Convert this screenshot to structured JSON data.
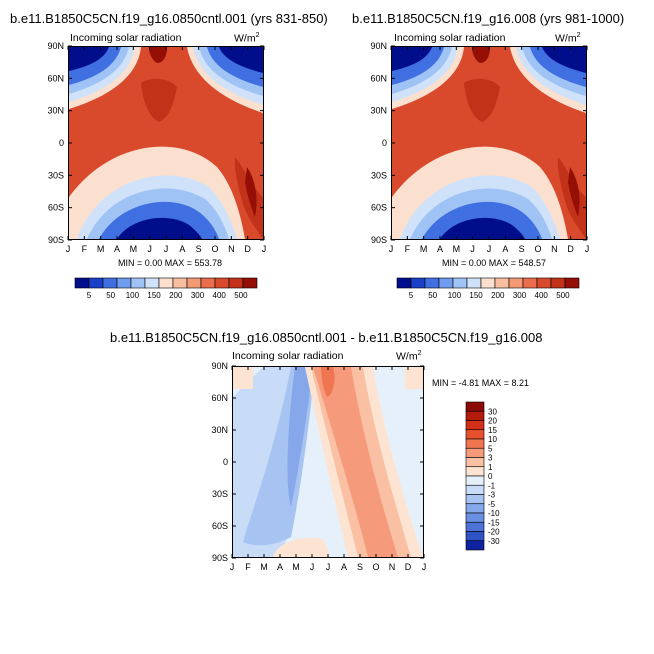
{
  "chart_data": [
    {
      "type": "contour",
      "title": "b.e11.B1850C5CN.f19_g16.0850cntl.001 (yrs 831-850)",
      "subtitle": "Incoming solar radiation",
      "units": "W/m",
      "units_sup": "2",
      "stats": "MIN =   0.00 MAX = 553.78",
      "x_ticks": [
        "J",
        "F",
        "M",
        "A",
        "M",
        "J",
        "J",
        "A",
        "S",
        "O",
        "N",
        "D",
        "J"
      ],
      "y_ticks": [
        "90N",
        "60N",
        "30N",
        "0",
        "30S",
        "60S",
        "90S"
      ],
      "colorbar_levels": [
        "5",
        "50",
        "100",
        "150",
        "200",
        "300",
        "400",
        "500"
      ],
      "colorbar_colors": [
        "#000e8c",
        "#1a3fc8",
        "#3f6fe0",
        "#6f9cee",
        "#9fc3f4",
        "#cfe2fa",
        "#fbe0cf",
        "#f7bf9f",
        "#f39a74",
        "#ea6d4c",
        "#d94a2c",
        "#c13219",
        "#950f06"
      ],
      "min": 0.0,
      "max": 553.78
    },
    {
      "type": "contour",
      "title": "b.e11.B1850C5CN.f19_g16.008 (yrs 981-1000)",
      "subtitle": "Incoming solar radiation",
      "units": "W/m",
      "units_sup": "2",
      "stats": "MIN =   0.00 MAX = 548.57",
      "x_ticks": [
        "J",
        "F",
        "M",
        "A",
        "M",
        "J",
        "J",
        "A",
        "S",
        "O",
        "N",
        "D",
        "J"
      ],
      "y_ticks": [
        "90N",
        "60N",
        "30N",
        "0",
        "30S",
        "60S",
        "90S"
      ],
      "colorbar_levels": [
        "5",
        "50",
        "100",
        "150",
        "200",
        "300",
        "400",
        "500"
      ],
      "colorbar_colors": [
        "#000e8c",
        "#1a3fc8",
        "#3f6fe0",
        "#6f9cee",
        "#9fc3f4",
        "#cfe2fa",
        "#fbe0cf",
        "#f7bf9f",
        "#f39a74",
        "#ea6d4c",
        "#d94a2c",
        "#c13219",
        "#950f06"
      ],
      "min": 0.0,
      "max": 548.57
    },
    {
      "type": "contour",
      "title": "b.e11.B1850C5CN.f19_g16.0850cntl.001 - b.e11.B1850C5CN.f19_g16.008",
      "subtitle": "Incoming solar radiation",
      "units": "W/m",
      "units_sup": "2",
      "stats": "MIN =  -4.81 MAX =   8.21",
      "x_ticks": [
        "J",
        "F",
        "M",
        "A",
        "M",
        "J",
        "J",
        "A",
        "S",
        "O",
        "N",
        "D",
        "J"
      ],
      "y_ticks": [
        "90N",
        "60N",
        "30N",
        "0",
        "30S",
        "60S",
        "90S"
      ],
      "colorbar_levels": [
        "30",
        "20",
        "15",
        "10",
        "5",
        "3",
        "1",
        "0",
        "-1",
        "-3",
        "-5",
        "-10",
        "-15",
        "-20",
        "-30"
      ],
      "colorbar_colors": [
        "#8a0a04",
        "#b51b0d",
        "#d3301a",
        "#e8512e",
        "#f07652",
        "#f59b7c",
        "#f9c0a4",
        "#fde4d2",
        "#e6f0fb",
        "#c8dcf8",
        "#a6c3f2",
        "#86a8ea",
        "#6a8fe2",
        "#4d73d9",
        "#2f52c5",
        "#0e22a0"
      ],
      "min": -4.81,
      "max": 8.21
    }
  ]
}
